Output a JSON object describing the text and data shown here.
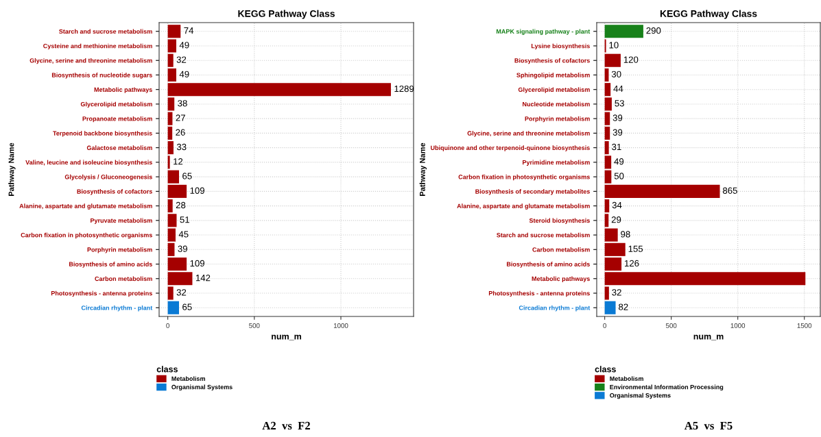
{
  "chart_data": [
    {
      "type": "bar",
      "orientation": "horizontal",
      "title": "KEGG Pathway Class",
      "xlabel": "num_m",
      "ylabel": "Pathway Name",
      "legend_title": "class",
      "legend": "bottom",
      "grid": true,
      "categories": [
        "Starch and sucrose metabolism",
        "Cysteine and methionine metabolism",
        "Glycine, serine and threonine metabolism",
        "Biosynthesis of nucleotide sugars",
        "Metabolic pathways",
        "Glycerolipid metabolism",
        "Propanoate metabolism",
        "Terpenoid backbone biosynthesis",
        "Galactose metabolism",
        "Valine, leucine and isoleucine biosynthesis",
        "Glycolysis / Gluconeogenesis",
        "Biosynthesis of cofactors",
        "Alanine, aspartate and glutamate metabolism",
        "Pyruvate metabolism",
        "Carbon fixation in photosynthetic organisms",
        "Porphyrin metabolism",
        "Biosynthesis of amino acids",
        "Carbon metabolism",
        "Photosynthesis - antenna proteins",
        "Circadian rhythm - plant"
      ],
      "series": [
        {
          "name": "Metabolism",
          "color": "#a50000",
          "values": [
            74,
            49,
            32,
            49,
            1289,
            38,
            27,
            26,
            33,
            12,
            65,
            109,
            28,
            51,
            45,
            39,
            109,
            142,
            32,
            null
          ],
          "value_labels": [
            "74",
            "49",
            "32",
            "49",
            "1289",
            "38",
            "27",
            "26",
            "33",
            "12",
            "65",
            "109",
            "28",
            "51",
            "45",
            "39",
            "109",
            "142",
            "32",
            null
          ]
        },
        {
          "name": "Organismal Systems",
          "color": "#0a7ad4",
          "values": [
            null,
            null,
            null,
            null,
            null,
            null,
            null,
            null,
            null,
            null,
            null,
            null,
            null,
            null,
            null,
            null,
            null,
            null,
            null,
            65
          ],
          "value_labels": [
            null,
            null,
            null,
            null,
            null,
            null,
            null,
            null,
            null,
            null,
            null,
            null,
            null,
            null,
            null,
            null,
            null,
            null,
            null,
            "65"
          ]
        }
      ],
      "xlim": [
        -50,
        1420
      ],
      "xticks": [
        0,
        500,
        1000
      ],
      "annotations": [
        "A2  vs  F2"
      ]
    },
    {
      "type": "bar",
      "orientation": "horizontal",
      "title": "KEGG Pathway Class",
      "xlabel": "num_m",
      "ylabel": "Pathway Name",
      "legend_title": "class",
      "legend": "bottom",
      "grid": true,
      "categories": [
        "MAPK signaling pathway - plant",
        "Lysine biosynthesis",
        "Biosynthesis of cofactors",
        "Sphingolipid metabolism",
        "Glycerolipid metabolism",
        "Nucleotide metabolism",
        "Porphyrin metabolism",
        "Glycine, serine and threonine metabolism",
        "Ubiquinone and other terpenoid-quinone biosynthesis",
        "Pyrimidine metabolism",
        "Carbon fixation in photosynthetic organisms",
        "Biosynthesis of secondary metabolites",
        "Alanine, aspartate and glutamate metabolism",
        "Steroid biosynthesis",
        "Starch and sucrose metabolism",
        "Carbon metabolism",
        "Biosynthesis of amino acids",
        "Metabolic pathways",
        "Photosynthesis - antenna proteins",
        "Circadian rhythm - plant"
      ],
      "series": [
        {
          "name": "Metabolism",
          "color": "#a50000",
          "values": [
            null,
            10,
            120,
            30,
            44,
            53,
            39,
            39,
            31,
            49,
            50,
            865,
            34,
            29,
            98,
            155,
            126,
            1508,
            32,
            null
          ],
          "value_labels": [
            null,
            "10",
            "120",
            "30",
            "44",
            "53",
            "39",
            "39",
            "31",
            "49",
            "50",
            "865",
            "34",
            "29",
            "98",
            "155",
            "126",
            null,
            "32",
            null
          ]
        },
        {
          "name": "Environmental Information Processing",
          "color": "#17811a",
          "values": [
            290,
            null,
            null,
            null,
            null,
            null,
            null,
            null,
            null,
            null,
            null,
            null,
            null,
            null,
            null,
            null,
            null,
            null,
            null,
            null
          ],
          "value_labels": [
            "290",
            null,
            null,
            null,
            null,
            null,
            null,
            null,
            null,
            null,
            null,
            null,
            null,
            null,
            null,
            null,
            null,
            null,
            null,
            null
          ]
        },
        {
          "name": "Organismal Systems",
          "color": "#0a7ad4",
          "values": [
            null,
            null,
            null,
            null,
            null,
            null,
            null,
            null,
            null,
            null,
            null,
            null,
            null,
            null,
            null,
            null,
            null,
            null,
            null,
            82
          ],
          "value_labels": [
            null,
            null,
            null,
            null,
            null,
            null,
            null,
            null,
            null,
            null,
            null,
            null,
            null,
            null,
            null,
            null,
            null,
            null,
            null,
            "82"
          ]
        }
      ],
      "xlim": [
        -60,
        1620
      ],
      "xticks": [
        0,
        500,
        1000,
        1500
      ],
      "annotations": [
        "A5  vs  F5"
      ]
    }
  ]
}
